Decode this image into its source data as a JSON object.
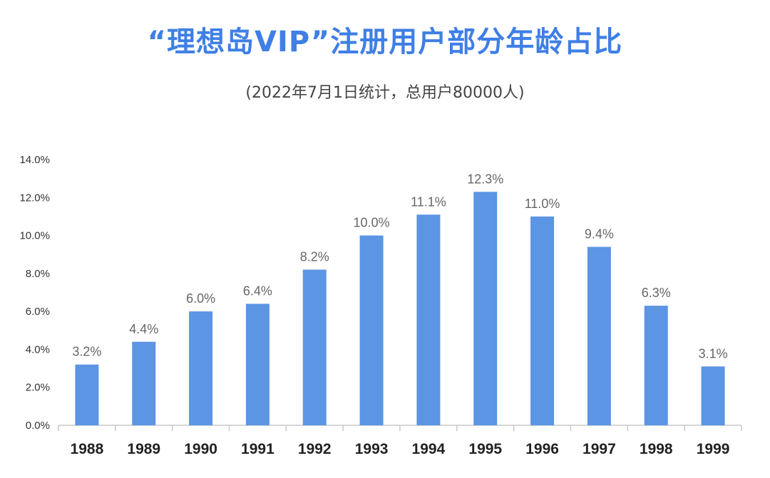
{
  "chart_data": {
    "type": "bar",
    "title": "“理想岛VIP”注册用户部分年龄占比",
    "subtitle": "(2022年7月1日统计，总用户80000人)",
    "categories": [
      "1988",
      "1989",
      "1990",
      "1991",
      "1992",
      "1993",
      "1994",
      "1995",
      "1996",
      "1997",
      "1998",
      "1999"
    ],
    "values": [
      3.2,
      4.4,
      6.0,
      6.4,
      8.2,
      10.0,
      11.1,
      12.3,
      11.0,
      9.4,
      6.3,
      3.1
    ],
    "value_labels": [
      "3.2%",
      "4.4%",
      "6.0%",
      "6.4%",
      "8.2%",
      "10.0%",
      "11.1%",
      "12.3%",
      "11.0%",
      "9.4%",
      "6.3%",
      "3.1%"
    ],
    "yticks": [
      "0.0%",
      "2.0%",
      "4.0%",
      "6.0%",
      "8.0%",
      "10.0%",
      "12.0%",
      "14.0%"
    ],
    "ylim": [
      0,
      14
    ],
    "xlabel": "",
    "ylabel": "",
    "grid": false,
    "legend": "none",
    "bar_color": "#5b95e3"
  }
}
